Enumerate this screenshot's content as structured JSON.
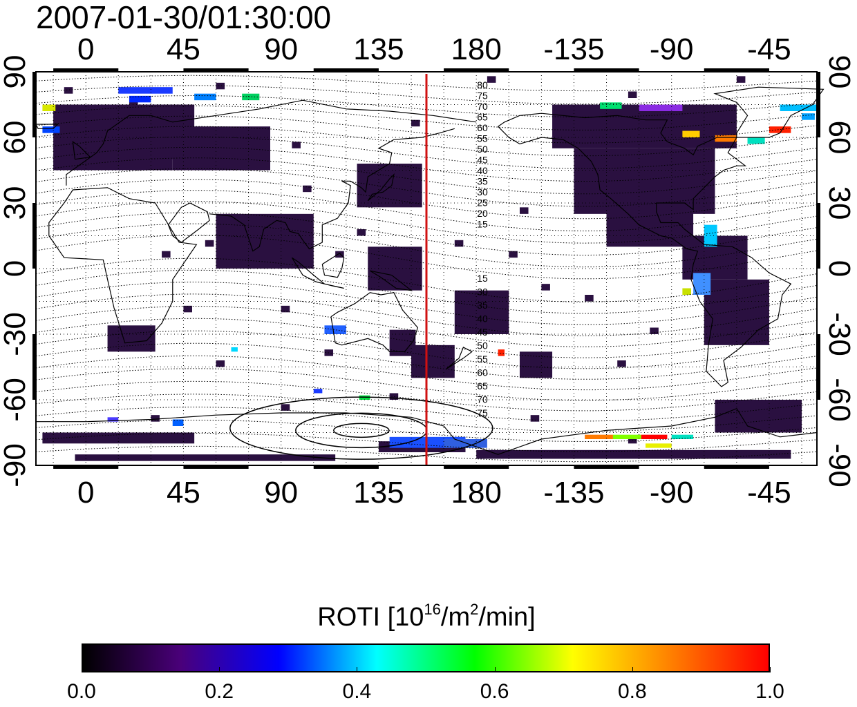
{
  "timestamp": "2007-01-30/01:30:00",
  "map": {
    "projection": "equirectangular",
    "lon_labels": [
      "0",
      "45",
      "90",
      "135",
      "180",
      "-135",
      "-90",
      "-45"
    ],
    "lon_values": [
      0,
      45,
      90,
      135,
      180,
      225,
      270,
      315
    ],
    "lat_labels": [
      "90",
      "60",
      "30",
      "0",
      "-30",
      "-60",
      "-90"
    ],
    "lat_values": [
      90,
      60,
      30,
      0,
      -30,
      -60,
      -90
    ],
    "meridian_marker_lon": 157,
    "meridian_marker_color": "#d01010",
    "magnetic_lat_labels_north": [
      "80",
      "75",
      "70",
      "65",
      "60",
      "55",
      "50",
      "45",
      "40",
      "35",
      "30",
      "25",
      "20",
      "15"
    ],
    "magnetic_lat_labels_south": [
      "15",
      "30",
      "35",
      "40",
      "45",
      "50",
      "55",
      "60",
      "65",
      "70",
      "75"
    ]
  },
  "colorbar": {
    "title_main": "ROTI  [10",
    "title_sup1": "16",
    "title_mid": "/m",
    "title_sup2": "2",
    "title_end": "/min]",
    "tick_labels": [
      "0.0",
      "0.2",
      "0.4",
      "0.6",
      "0.8",
      "1.0"
    ],
    "tick_values": [
      0.0,
      0.2,
      0.4,
      0.6,
      0.8,
      1.0
    ],
    "colors": [
      "#000000",
      "#4a007a",
      "#0000ff",
      "#00ffff",
      "#00ff00",
      "#ffff00",
      "#ff8000",
      "#ff0000"
    ]
  }
}
